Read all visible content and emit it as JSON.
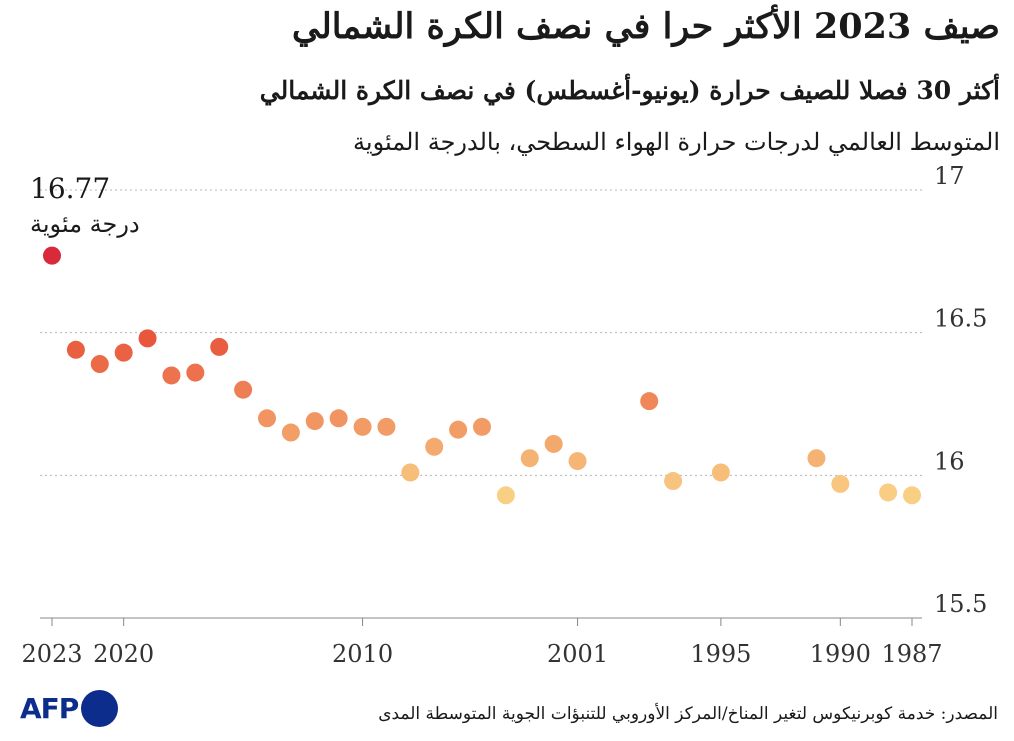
{
  "title": "صيف 2023 الأكثر حرا في نصف الكرة الشمالي",
  "subtitle": "أكثر 30 فصلا للصيف حرارة (يونيو-أغسطس) في نصف الكرة الشمالي",
  "unit_label": "المتوسط العالمي لدرجات حرارة الهواء السطحي، بالدرجة المئوية",
  "source": "المصدر: خدمة كوبرنيكوس لتغير المناخ/المركز الأوروبي للتنبؤات الجوية المتوسطة المدى",
  "logo": {
    "text": "AFP",
    "color": "#0d2d8c"
  },
  "chart_data": {
    "type": "scatter",
    "x": [
      2023,
      2022,
      2021,
      2020,
      2019,
      2018,
      2017,
      2016,
      2015,
      2014,
      2013,
      2012,
      2011,
      2010,
      2009,
      2008,
      2007,
      2006,
      2005,
      2004,
      2003,
      2002,
      2001,
      1998,
      1997,
      1995,
      1991,
      1990,
      1988,
      1987
    ],
    "y": [
      16.77,
      16.44,
      16.39,
      16.43,
      16.48,
      16.35,
      16.36,
      16.45,
      16.3,
      16.2,
      16.15,
      16.19,
      16.2,
      16.17,
      16.17,
      16.01,
      16.1,
      16.16,
      16.17,
      15.93,
      16.06,
      16.11,
      16.05,
      16.26,
      15.98,
      16.01,
      16.06,
      15.97,
      15.94,
      15.93
    ],
    "x_ticks": [
      "2023",
      "2020",
      "2010",
      "2001",
      "1995",
      "1990",
      "1987"
    ],
    "x_tick_values": [
      2023,
      2020,
      2010,
      2001,
      1995,
      1990,
      1987
    ],
    "y_ticks": [
      "17",
      "16.5",
      "16",
      "15.5"
    ],
    "y_tick_values": [
      17,
      16.5,
      16,
      15.5
    ],
    "ylim": [
      15.5,
      17
    ],
    "x_axis": "reversed (newest year on the left)",
    "grid": "horizontal dotted",
    "highlight": {
      "label_value": "16.77",
      "label_unit": "درجة مئوية",
      "color": "#d92a3c"
    },
    "color_scale": {
      "high": "#e8573c",
      "low": "#f9cf84"
    }
  }
}
